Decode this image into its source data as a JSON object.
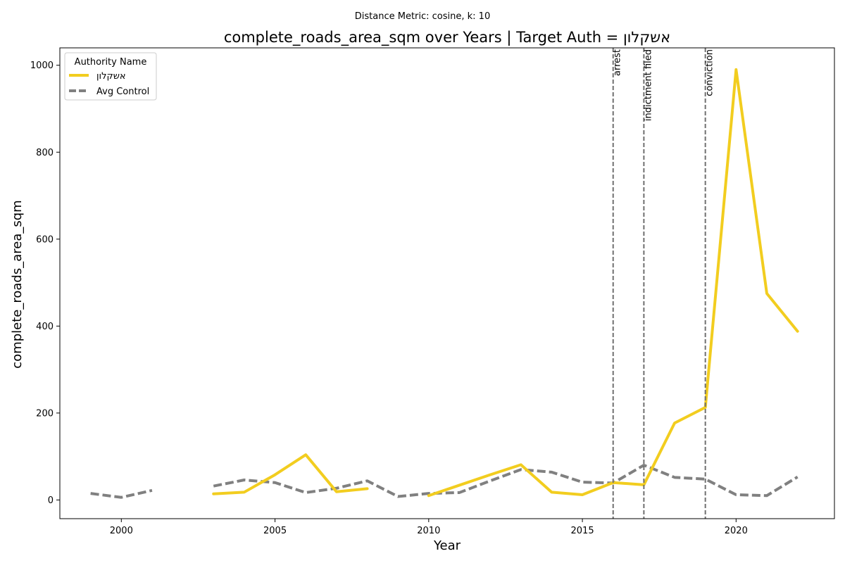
{
  "chart_data": {
    "type": "line",
    "subtitle": "Distance Metric: cosine, k: 10",
    "title": "complete_roads_area_sqm over Years | Target Auth = אשקלון",
    "xlabel": "Year",
    "ylabel": "complete_roads_area_sqm",
    "xlim": [
      1998,
      2023.2
    ],
    "ylim": [
      -43,
      1040
    ],
    "xticks": [
      2000,
      2005,
      2010,
      2015,
      2020
    ],
    "yticks": [
      0,
      200,
      400,
      600,
      800,
      1000
    ],
    "grid": false,
    "legend": {
      "title": "Authority Name",
      "placement": "top-left"
    },
    "series": [
      {
        "name": "אשקלון",
        "color": "#f2cd1f",
        "style": "solid",
        "points": [
          [
            2003,
            14
          ],
          [
            2004,
            18
          ],
          [
            2005,
            58
          ],
          [
            2006,
            104
          ],
          [
            2007,
            19
          ],
          [
            2008,
            26
          ],
          [
            2009,
            null
          ],
          [
            2010,
            10
          ],
          [
            2011,
            34
          ],
          [
            2012,
            58
          ],
          [
            2013,
            81
          ],
          [
            2014,
            18
          ],
          [
            2015,
            12
          ],
          [
            2016,
            40
          ],
          [
            2017,
            35
          ],
          [
            2018,
            177
          ],
          [
            2019,
            213
          ],
          [
            2020,
            990
          ],
          [
            2021,
            475
          ],
          [
            2022,
            388
          ]
        ]
      },
      {
        "name": "Avg Control",
        "color": "#808080",
        "style": "dashed",
        "points": [
          [
            1999,
            15
          ],
          [
            2000,
            6
          ],
          [
            2001,
            22
          ],
          [
            2002,
            null
          ],
          [
            2003,
            32
          ],
          [
            2004,
            46
          ],
          [
            2005,
            40
          ],
          [
            2006,
            17
          ],
          [
            2007,
            27
          ],
          [
            2008,
            44
          ],
          [
            2009,
            8
          ],
          [
            2010,
            15
          ],
          [
            2011,
            17
          ],
          [
            2012,
            44
          ],
          [
            2013,
            70
          ],
          [
            2014,
            64
          ],
          [
            2015,
            41
          ],
          [
            2016,
            39
          ],
          [
            2017,
            80
          ],
          [
            2018,
            52
          ],
          [
            2019,
            48
          ],
          [
            2020,
            12
          ],
          [
            2021,
            10
          ],
          [
            2022,
            53
          ]
        ]
      }
    ],
    "events": [
      {
        "x": 2016,
        "label": "arrest"
      },
      {
        "x": 2017,
        "label": "indictment filed"
      },
      {
        "x": 2019,
        "label": "conviction"
      }
    ]
  }
}
